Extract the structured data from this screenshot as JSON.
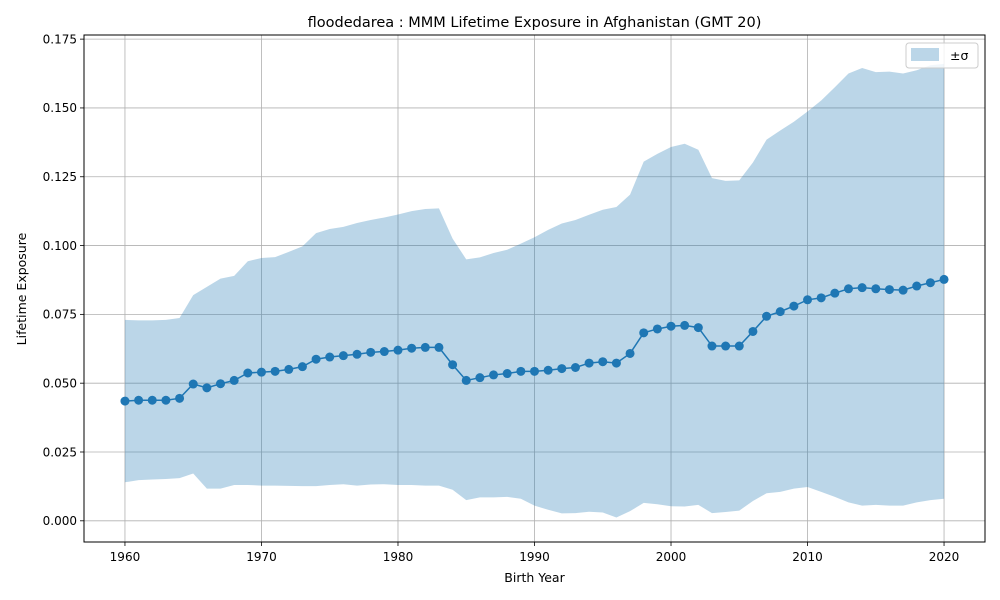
{
  "chart_data": {
    "type": "line",
    "title": "floodedarea : MMM Lifetime Exposure in Afghanistan (GMT 20)",
    "xlabel": "Birth Year",
    "ylabel": "Lifetime Exposure",
    "xlim": [
      1957,
      2023
    ],
    "ylim": [
      -0.0077,
      0.1765
    ],
    "xticks": [
      1960,
      1970,
      1980,
      1990,
      2000,
      2010,
      2020
    ],
    "yticks": [
      0.0,
      0.025,
      0.05,
      0.075,
      0.1,
      0.125,
      0.15,
      0.175
    ],
    "ytick_labels": [
      "0.000",
      "0.025",
      "0.050",
      "0.075",
      "0.100",
      "0.125",
      "0.150",
      "0.175"
    ],
    "grid": true,
    "legend": {
      "position": "top-right",
      "entries": [
        "±σ"
      ]
    },
    "x": [
      1960,
      1961,
      1962,
      1963,
      1964,
      1965,
      1966,
      1967,
      1968,
      1969,
      1970,
      1971,
      1972,
      1973,
      1974,
      1975,
      1976,
      1977,
      1978,
      1979,
      1980,
      1981,
      1982,
      1983,
      1984,
      1985,
      1986,
      1987,
      1988,
      1989,
      1990,
      1991,
      1992,
      1993,
      1994,
      1995,
      1996,
      1997,
      1998,
      1999,
      2000,
      2001,
      2002,
      2003,
      2004,
      2005,
      2006,
      2007,
      2008,
      2009,
      2010,
      2011,
      2012,
      2013,
      2014,
      2015,
      2016,
      2017,
      2018,
      2019,
      2020
    ],
    "series": [
      {
        "role": "mean",
        "color": "#1f77b4",
        "values": [
          0.0435,
          0.0438,
          0.0438,
          0.0438,
          0.0445,
          0.0497,
          0.0483,
          0.0498,
          0.051,
          0.0537,
          0.054,
          0.0543,
          0.055,
          0.056,
          0.0587,
          0.0595,
          0.06,
          0.0605,
          0.0612,
          0.0615,
          0.062,
          0.0627,
          0.063,
          0.063,
          0.0567,
          0.051,
          0.052,
          0.053,
          0.0535,
          0.0543,
          0.0543,
          0.0547,
          0.0553,
          0.0557,
          0.0573,
          0.0578,
          0.0573,
          0.0608,
          0.0683,
          0.0697,
          0.0707,
          0.071,
          0.0702,
          0.0635,
          0.0635,
          0.0635,
          0.0688,
          0.0743,
          0.076,
          0.078,
          0.0803,
          0.081,
          0.0827,
          0.0843,
          0.0847,
          0.0843,
          0.084,
          0.0838,
          0.0853,
          0.0865,
          0.0877
        ]
      },
      {
        "role": "band",
        "name": "±σ",
        "color": "#1f77b4",
        "opacity": 0.3,
        "upper": [
          0.073,
          0.0728,
          0.0728,
          0.073,
          0.0737,
          0.082,
          0.085,
          0.088,
          0.089,
          0.0943,
          0.0955,
          0.0958,
          0.0977,
          0.0997,
          0.1045,
          0.106,
          0.1068,
          0.1082,
          0.1093,
          0.1102,
          0.1113,
          0.1125,
          0.1133,
          0.1135,
          0.1025,
          0.095,
          0.0957,
          0.0973,
          0.0985,
          0.1007,
          0.103,
          0.1057,
          0.108,
          0.1093,
          0.1112,
          0.113,
          0.114,
          0.1185,
          0.1305,
          0.1333,
          0.1358,
          0.137,
          0.1348,
          0.1245,
          0.1235,
          0.1237,
          0.1302,
          0.1385,
          0.1418,
          0.145,
          0.1487,
          0.1527,
          0.1575,
          0.1625,
          0.1645,
          0.163,
          0.1632,
          0.1625,
          0.1637,
          0.1655,
          0.166
        ],
        "lower": [
          0.014,
          0.0148,
          0.015,
          0.0152,
          0.0155,
          0.0172,
          0.0117,
          0.0117,
          0.013,
          0.013,
          0.0128,
          0.0128,
          0.0127,
          0.0126,
          0.0126,
          0.013,
          0.0133,
          0.0128,
          0.0132,
          0.0133,
          0.013,
          0.013,
          0.0128,
          0.0128,
          0.0113,
          0.0075,
          0.0085,
          0.0085,
          0.0087,
          0.008,
          0.0055,
          0.004,
          0.0027,
          0.0028,
          0.0033,
          0.003,
          0.0012,
          0.0035,
          0.0065,
          0.006,
          0.0053,
          0.0052,
          0.0058,
          0.0028,
          0.0032,
          0.0037,
          0.0072,
          0.01,
          0.0105,
          0.0117,
          0.0123,
          0.0105,
          0.0087,
          0.0067,
          0.0055,
          0.0058,
          0.0055,
          0.0055,
          0.0067,
          0.0075,
          0.008
        ]
      }
    ]
  }
}
